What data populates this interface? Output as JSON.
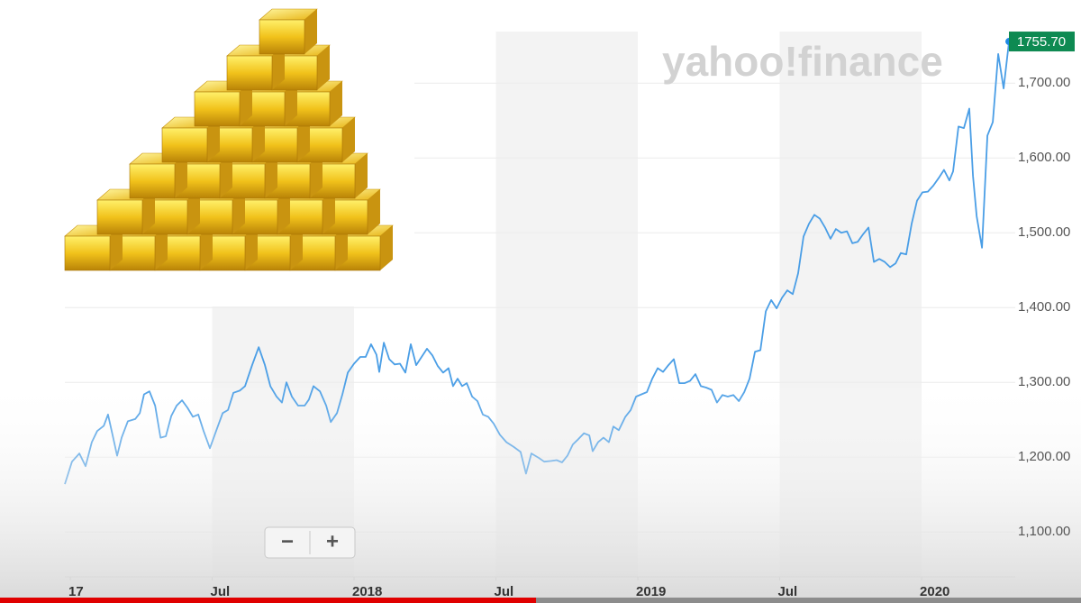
{
  "chart_data": {
    "type": "line",
    "watermark": "yahoo!finance",
    "color": "#4a9ee6",
    "x": [
      2016.981,
      2017.006,
      2017.032,
      2017.054,
      2017.076,
      2017.095,
      2017.118,
      2017.133,
      2017.149,
      2017.165,
      2017.181,
      2017.203,
      2017.229,
      2017.245,
      2017.26,
      2017.279,
      2017.299,
      2017.318,
      2017.337,
      2017.356,
      2017.375,
      2017.394,
      2017.413,
      2017.432,
      2017.451,
      2017.47,
      2017.492,
      2017.514,
      2017.537,
      2017.556,
      2017.575,
      2017.597,
      2017.616,
      2017.641,
      2017.664,
      2017.686,
      2017.705,
      2017.727,
      2017.746,
      2017.762,
      2017.781,
      2017.803,
      2017.826,
      2017.841,
      2017.857,
      2017.88,
      2017.902,
      2017.918,
      2017.94,
      2017.959,
      2017.978,
      2018.0,
      2018.022,
      2018.041,
      2018.06,
      2018.079,
      2018.089,
      2018.105,
      2018.124,
      2018.143,
      2018.162,
      2018.181,
      2018.2,
      2018.219,
      2018.238,
      2018.257,
      2018.276,
      2018.295,
      2018.314,
      2018.333,
      2018.349,
      2018.365,
      2018.381,
      2018.397,
      2018.416,
      2018.435,
      2018.454,
      2018.473,
      2018.492,
      2018.514,
      2018.537,
      2018.562,
      2018.587,
      2018.606,
      2018.625,
      2018.651,
      2018.67,
      2018.695,
      2018.714,
      2018.733,
      2018.752,
      2018.771,
      2018.79,
      2018.81,
      2018.829,
      2018.841,
      2018.86,
      2018.879,
      2018.898,
      2018.914,
      2018.933,
      2018.956,
      2018.975,
      2018.994,
      2019.013,
      2019.032,
      2019.051,
      2019.07,
      2019.089,
      2019.108,
      2019.127,
      2019.146,
      2019.165,
      2019.184,
      2019.203,
      2019.222,
      2019.241,
      2019.26,
      2019.279,
      2019.298,
      2019.317,
      2019.337,
      2019.356,
      2019.375,
      2019.394,
      2019.413,
      2019.432,
      2019.451,
      2019.47,
      2019.489,
      2019.508,
      2019.527,
      2019.546,
      2019.565,
      2019.584,
      2019.603,
      2019.622,
      2019.641,
      2019.66,
      2019.679,
      2019.698,
      2019.717,
      2019.737,
      2019.756,
      2019.775,
      2019.794,
      2019.813,
      2019.832,
      2019.851,
      2019.87,
      2019.889,
      2019.908,
      2019.927,
      2019.946,
      2019.965,
      2019.984,
      2020.003,
      2020.022,
      2020.041,
      2020.06,
      2020.079,
      2020.098,
      2020.111,
      2020.13,
      2020.149,
      2020.168,
      2020.181,
      2020.194,
      2020.213,
      2020.232,
      2020.251,
      2020.27,
      2020.289,
      2020.308
    ],
    "values": [
      1164,
      1194,
      1205,
      1188,
      1220,
      1235,
      1242,
      1257,
      1230,
      1202,
      1226,
      1248,
      1251,
      1259,
      1284,
      1288,
      1269,
      1226,
      1228,
      1255,
      1269,
      1276,
      1266,
      1254,
      1257,
      1235,
      1212,
      1235,
      1259,
      1263,
      1286,
      1289,
      1295,
      1323,
      1347,
      1323,
      1295,
      1281,
      1273,
      1300,
      1281,
      1269,
      1269,
      1277,
      1295,
      1288,
      1269,
      1247,
      1259,
      1284,
      1313,
      1325,
      1334,
      1334,
      1351,
      1337,
      1314,
      1353,
      1331,
      1324,
      1325,
      1313,
      1351,
      1323,
      1334,
      1345,
      1336,
      1322,
      1313,
      1319,
      1295,
      1305,
      1295,
      1299,
      1281,
      1275,
      1257,
      1254,
      1245,
      1230,
      1220,
      1214,
      1207,
      1178,
      1205,
      1199,
      1194,
      1195,
      1196,
      1193,
      1202,
      1217,
      1224,
      1232,
      1229,
      1208,
      1220,
      1226,
      1220,
      1241,
      1236,
      1254,
      1263,
      1281,
      1284,
      1287,
      1305,
      1319,
      1314,
      1323,
      1331,
      1299,
      1299,
      1302,
      1311,
      1295,
      1293,
      1290,
      1273,
      1283,
      1281,
      1283,
      1275,
      1287,
      1305,
      1341,
      1343,
      1395,
      1410,
      1399,
      1413,
      1423,
      1418,
      1446,
      1495,
      1512,
      1524,
      1519,
      1507,
      1492,
      1505,
      1500,
      1502,
      1486,
      1488,
      1498,
      1507,
      1461,
      1465,
      1461,
      1454,
      1459,
      1473,
      1471,
      1512,
      1543,
      1554,
      1555,
      1563,
      1573,
      1584,
      1570,
      1582,
      1642,
      1640,
      1666,
      1576,
      1522,
      1480,
      1630,
      1648,
      1739,
      1693,
      1755.7
    ],
    "last_price": {
      "value": 1755.7,
      "label": "1755.70"
    },
    "xlim": [
      2016.981,
      2020.33
    ],
    "ylim": [
      1040,
      1769
    ],
    "xticks": [
      {
        "value": 2017,
        "label": "17"
      },
      {
        "value": 2017.5,
        "label": "Jul"
      },
      2018,
      {
        "value": 2018.5,
        "label": "Jul"
      },
      2019,
      {
        "value": 2019.5,
        "label": "Jul"
      },
      2020
    ],
    "yticks": [
      {
        "value": 1100,
        "label": "1,100.00"
      },
      {
        "value": 1200,
        "label": "1,200.00"
      },
      {
        "value": 1300,
        "label": "1,300.00"
      },
      {
        "value": 1400,
        "label": "1,400.00"
      },
      {
        "value": 1500,
        "label": "1,500.00"
      },
      {
        "value": 1600,
        "label": "1,600.00"
      },
      {
        "value": 1700,
        "label": "1,700.00"
      }
    ],
    "grid": true
  },
  "controls": [
    "−",
    "+"
  ]
}
